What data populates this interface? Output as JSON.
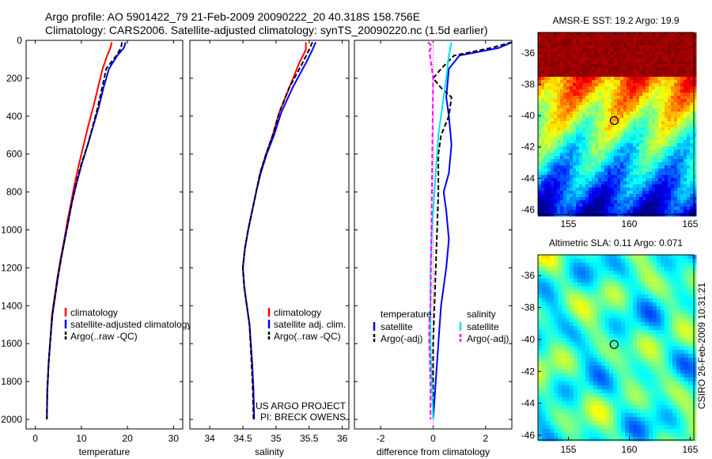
{
  "header": {
    "title_line1": "Argo profile: AO 5901422_79 21-Feb-2009 20090222_20 40.318S 158.756E",
    "title_line2": "Climatology: CARS2006. Satellite-adjusted climatology: synTS_20090220.nc (1.5d earlier)"
  },
  "footer": {
    "credit": "CSIRO 26-Feb-2009 10:31:21",
    "project_line1": "US ARGO PROJECT",
    "project_line2": "PI: BRECK OWENS"
  },
  "colors": {
    "climatology": "#ff0000",
    "satellite": "#0000ff",
    "argo": "#000000",
    "satellite_diff": "#00e5e5",
    "argo_diff": "#ff00ff"
  },
  "chart_data": [
    {
      "type": "line",
      "id": "temperature",
      "xlabel": "temperature",
      "ylabel": "",
      "xlim": [
        -2,
        32
      ],
      "ylim": [
        2050,
        0
      ],
      "xticks": [
        0,
        10,
        20,
        30
      ],
      "yticks": [
        0,
        200,
        400,
        600,
        800,
        1000,
        1200,
        1400,
        1600,
        1800,
        2000
      ],
      "legend": [
        "climatology",
        "satellite-adjusted climatology",
        "Argo(..raw -QC)"
      ],
      "legend_placement": "lower-right",
      "series": [
        {
          "name": "climatology",
          "color": "#ff0000",
          "x": [
            16.6,
            16.3,
            15.6,
            14.6,
            13.6,
            12.6,
            11.5,
            10.5,
            9.5,
            8.6,
            7.8,
            7.0,
            6.3,
            5.5,
            4.8,
            4.2,
            3.6,
            3.2,
            2.9,
            2.6,
            2.5
          ],
          "y": [
            10,
            40,
            80,
            150,
            250,
            350,
            450,
            550,
            650,
            750,
            850,
            950,
            1050,
            1150,
            1250,
            1350,
            1450,
            1600,
            1700,
            1850,
            2000
          ]
        },
        {
          "name": "satellite-adjusted climatology",
          "color": "#0000ff",
          "x": [
            19.6,
            19.2,
            17.8,
            16.0,
            14.8,
            13.8,
            12.6,
            11.4,
            10.1,
            9.0,
            8.0,
            7.2,
            6.4,
            5.6,
            4.9,
            4.3,
            3.7,
            3.2,
            2.9,
            2.6,
            2.5
          ],
          "y": [
            10,
            40,
            80,
            150,
            250,
            350,
            450,
            550,
            650,
            750,
            850,
            950,
            1050,
            1150,
            1250,
            1350,
            1450,
            1600,
            1700,
            1850,
            2000
          ]
        },
        {
          "name": "Argo(..raw -QC)",
          "color": "#000000",
          "x": [
            18.8,
            18.6,
            17.6,
            15.4,
            14.5,
            13.6,
            12.5,
            11.4,
            10.0,
            8.9,
            8.0,
            7.2,
            6.4,
            5.6,
            4.9,
            4.3,
            3.7,
            3.2,
            2.9,
            2.6,
            2.5
          ],
          "y": [
            10,
            40,
            80,
            150,
            250,
            350,
            450,
            550,
            650,
            750,
            850,
            950,
            1050,
            1150,
            1250,
            1350,
            1450,
            1600,
            1700,
            1850,
            2000
          ]
        }
      ]
    },
    {
      "type": "line",
      "id": "salinity",
      "xlabel": "salinity",
      "ylabel": "",
      "xlim": [
        33.7,
        36.1
      ],
      "ylim": [
        2050,
        0
      ],
      "xticks": [
        34,
        34.5,
        35,
        35.5,
        36
      ],
      "yticks": [
        0,
        200,
        400,
        600,
        800,
        1000,
        1200,
        1400,
        1600,
        1800,
        2000
      ],
      "legend": [
        "climatology",
        "satellite adj. clim.",
        "Argo(..raw -QC)"
      ],
      "legend_placement": "lower-right",
      "series": [
        {
          "name": "climatology",
          "color": "#ff0000",
          "x": [
            35.45,
            35.45,
            35.35,
            35.2,
            35.05,
            34.95,
            34.85,
            34.76,
            34.7,
            34.64,
            34.58,
            34.53,
            34.5,
            34.52,
            34.56,
            34.6,
            34.64,
            34.66,
            34.67
          ],
          "y": [
            10,
            50,
            120,
            250,
            380,
            500,
            600,
            700,
            800,
            900,
            1000,
            1100,
            1200,
            1300,
            1400,
            1500,
            1700,
            1850,
            2000
          ]
        },
        {
          "name": "satellite adj. clim.",
          "color": "#0000ff",
          "x": [
            35.6,
            35.55,
            35.45,
            35.25,
            35.08,
            34.97,
            34.86,
            34.77,
            34.7,
            34.64,
            34.58,
            34.53,
            34.5,
            34.52,
            34.56,
            34.6,
            34.64,
            34.66,
            34.67
          ],
          "y": [
            10,
            50,
            120,
            250,
            380,
            500,
            600,
            700,
            800,
            900,
            1000,
            1100,
            1200,
            1300,
            1400,
            1500,
            1700,
            1850,
            2000
          ]
        },
        {
          "name": "Argo(..raw -QC)",
          "color": "#000000",
          "x": [
            35.55,
            35.5,
            35.4,
            35.2,
            35.05,
            34.95,
            34.85,
            34.76,
            34.7,
            34.64,
            34.58,
            34.53,
            34.5,
            34.52,
            34.56,
            34.6,
            34.63,
            34.65,
            34.66
          ],
          "y": [
            10,
            50,
            120,
            250,
            380,
            500,
            600,
            700,
            800,
            900,
            1000,
            1100,
            1200,
            1300,
            1400,
            1500,
            1700,
            1850,
            2000
          ]
        }
      ]
    },
    {
      "type": "line",
      "id": "difference",
      "xlabel": "difference from climatology",
      "ylabel": "",
      "xlim": [
        -3,
        3
      ],
      "ylim": [
        2050,
        0
      ],
      "xticks": [
        -2,
        0,
        2
      ],
      "yticks": [
        0,
        200,
        400,
        600,
        800,
        1000,
        1200,
        1400,
        1600,
        1800,
        2000
      ],
      "legend_groups": [
        {
          "title": "temperature",
          "entries": [
            "satellite",
            "Argo(-adj)"
          ]
        },
        {
          "title": "salinity",
          "entries": [
            "satellite",
            "Argo(-adj)"
          ]
        }
      ],
      "legend_placement": "lower",
      "series": [
        {
          "name": "satellite",
          "group": "temperature",
          "color": "#0000ff",
          "x": [
            3.0,
            2.5,
            1.0,
            0.6,
            0.5,
            0.6,
            0.7,
            0.6,
            0.4,
            0.5,
            0.6,
            0.5,
            0.3,
            0.2,
            0.1,
            0.05,
            0.0
          ],
          "y": [
            10,
            40,
            80,
            150,
            300,
            400,
            550,
            700,
            800,
            900,
            1050,
            1200,
            1400,
            1600,
            1800,
            1900,
            2000
          ]
        },
        {
          "name": "Argo(-adj)",
          "group": "temperature",
          "color": "#000000",
          "x": [
            3.0,
            2.2,
            0.8,
            0.3,
            0.0,
            0.3,
            0.7,
            0.6,
            0.3,
            0.2,
            0.2,
            0.15,
            0.1,
            0.05,
            0.0,
            0.0,
            0.0
          ],
          "y": [
            10,
            40,
            80,
            150,
            200,
            250,
            300,
            400,
            500,
            600,
            800,
            1000,
            1200,
            1400,
            1600,
            1800,
            2000
          ]
        },
        {
          "name": "satellite",
          "group": "salinity",
          "color": "#00e5e5",
          "x": [
            0.7,
            0.6,
            0.5,
            0.4,
            0.3,
            0.2,
            0.15,
            0.05,
            -0.05,
            -0.1,
            -0.1,
            -0.1,
            -0.05,
            0.0
          ],
          "y": [
            10,
            80,
            200,
            300,
            400,
            500,
            600,
            800,
            1000,
            1200,
            1400,
            1600,
            1800,
            2000
          ]
        },
        {
          "name": "Argo(-adj)",
          "group": "salinity",
          "color": "#ff00ff",
          "x": [
            -0.2,
            -0.05,
            -0.15,
            -0.1,
            0.0,
            -0.1,
            -0.15,
            -0.15,
            -0.12,
            -0.1,
            -0.1
          ],
          "y": [
            10,
            30,
            60,
            100,
            200,
            1400,
            1500,
            1600,
            1700,
            1850,
            2000
          ]
        }
      ]
    },
    {
      "type": "heatmap",
      "id": "sst-map",
      "title": "AMSR-E SST: 19.2  Argo: 19.9",
      "xlim": [
        152.5,
        165.3
      ],
      "ylim": [
        -46.3,
        -34.7
      ],
      "xticks": [
        155,
        160,
        165
      ],
      "yticks": [
        -36,
        -38,
        -40,
        -42,
        -44,
        -46
      ],
      "marker": {
        "lon": 158.756,
        "lat": -40.318
      }
    },
    {
      "type": "heatmap",
      "id": "sla-map",
      "title": "Altimetric SLA: 0.11  Argo: 0.071",
      "xlim": [
        152.5,
        165.3
      ],
      "ylim": [
        -46.3,
        -34.7
      ],
      "xticks": [
        155,
        160,
        165
      ],
      "yticks": [
        -36,
        -38,
        -40,
        -42,
        -44,
        -46
      ],
      "marker": {
        "lon": 158.756,
        "lat": -40.318
      }
    }
  ]
}
